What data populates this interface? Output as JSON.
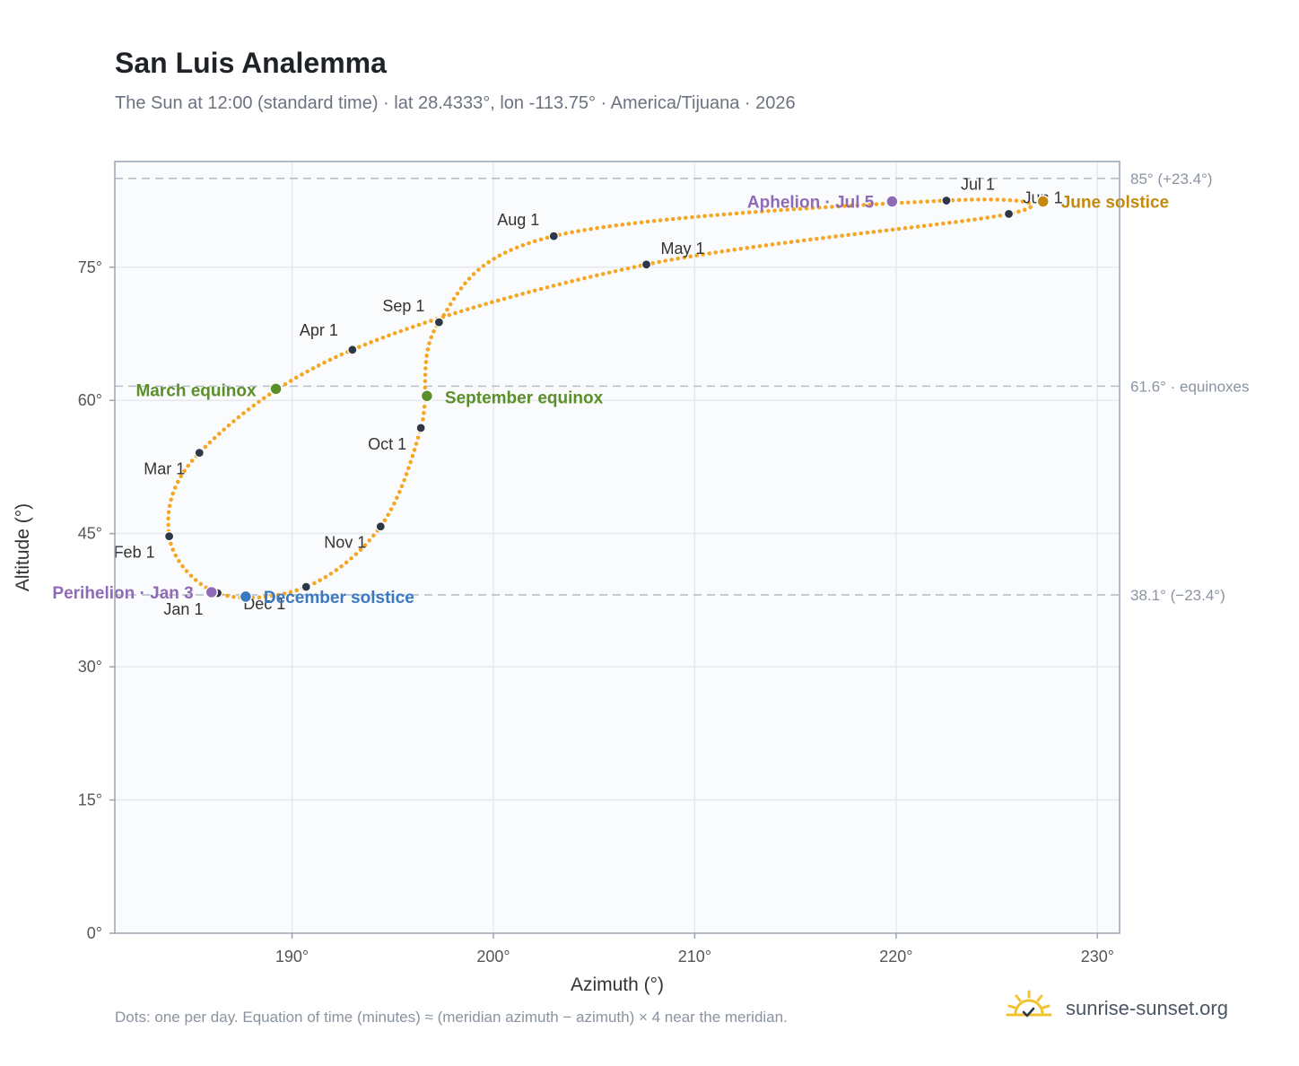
{
  "title": "San Luis Analemma",
  "subtitle": "The Sun at 12:00 (standard time) · lat 28.4333°, lon -113.75° · America/Tijuana · 2026",
  "footnote": "Dots: one per day. Equation of time (minutes) ≈ (meridian azimuth − azimuth) × 4 near the meridian.",
  "brand": {
    "name": "sunrise-sunset.org",
    "icon": "sun-logo-icon"
  },
  "colors": {
    "path": "#f5a623",
    "month_dot": "#2d3748",
    "equinox": "#5a8f29",
    "perihelion": "#8e6bb4",
    "aphelion": "#8e6bb4",
    "december_solstice": "#3a78c2",
    "june_solstice": "#c38a0c",
    "grid": "#e5e9ef",
    "plot_bg": "#fafbfd",
    "border": "#9aa5b4",
    "ref_line": "#b5bec9"
  },
  "chart_data": {
    "type": "scatter",
    "xlabel": "Azimuth (°)",
    "ylabel": "Altitude (°)",
    "xlim": [
      181.2,
      231.1
    ],
    "ylim": [
      0,
      86.9
    ],
    "xticks": [
      {
        "value": 190,
        "label": "190°"
      },
      {
        "value": 200,
        "label": "200°"
      },
      {
        "value": 210,
        "label": "210°"
      },
      {
        "value": 220,
        "label": "220°"
      },
      {
        "value": 230,
        "label": "230°"
      }
    ],
    "yticks": [
      {
        "value": 0,
        "label": "0°"
      },
      {
        "value": 15,
        "label": "15°"
      },
      {
        "value": 30,
        "label": "30°"
      },
      {
        "value": 45,
        "label": "45°"
      },
      {
        "value": 60,
        "label": "60°"
      },
      {
        "value": 75,
        "label": "75°"
      }
    ],
    "grid": true,
    "reference_lines": [
      {
        "altitude": 85.0,
        "label": "85° (+23.4°)"
      },
      {
        "altitude": 61.6,
        "label": "61.6° · equinoxes"
      },
      {
        "altitude": 38.1,
        "label": "38.1° (−23.4°)"
      }
    ],
    "months": [
      {
        "label": "Jan 1",
        "az": 186.3,
        "alt": 38.3
      },
      {
        "label": "Feb 1",
        "az": 183.9,
        "alt": 44.7
      },
      {
        "label": "Mar 1",
        "az": 185.4,
        "alt": 54.1
      },
      {
        "label": "Apr 1",
        "az": 193.0,
        "alt": 65.7
      },
      {
        "label": "May 1",
        "az": 207.6,
        "alt": 75.3
      },
      {
        "label": "Jun 1",
        "az": 225.6,
        "alt": 81.0
      },
      {
        "label": "Jul 1",
        "az": 222.5,
        "alt": 82.5
      },
      {
        "label": "Aug 1",
        "az": 203.0,
        "alt": 78.5
      },
      {
        "label": "Sep 1",
        "az": 197.3,
        "alt": 68.8
      },
      {
        "label": "Oct 1",
        "az": 196.4,
        "alt": 56.9
      },
      {
        "label": "Nov 1",
        "az": 194.4,
        "alt": 45.8
      },
      {
        "label": "Dec 1",
        "az": 190.7,
        "alt": 39.0
      }
    ],
    "events": [
      {
        "label": "March equinox",
        "az": 189.2,
        "alt": 61.3,
        "color_key": "equinox"
      },
      {
        "label": "September equinox",
        "az": 196.7,
        "alt": 60.5,
        "color_key": "equinox"
      },
      {
        "label": "Perihelion · Jan 3",
        "az": 186.0,
        "alt": 38.4,
        "color_key": "perihelion"
      },
      {
        "label": "Aphelion · Jul 5",
        "az": 219.8,
        "alt": 82.4,
        "color_key": "aphelion"
      },
      {
        "label": "December solstice",
        "az": 187.7,
        "alt": 37.9,
        "color_key": "december_solstice"
      },
      {
        "label": "June solstice",
        "az": 227.3,
        "alt": 82.4,
        "color_key": "june_solstice"
      }
    ]
  }
}
